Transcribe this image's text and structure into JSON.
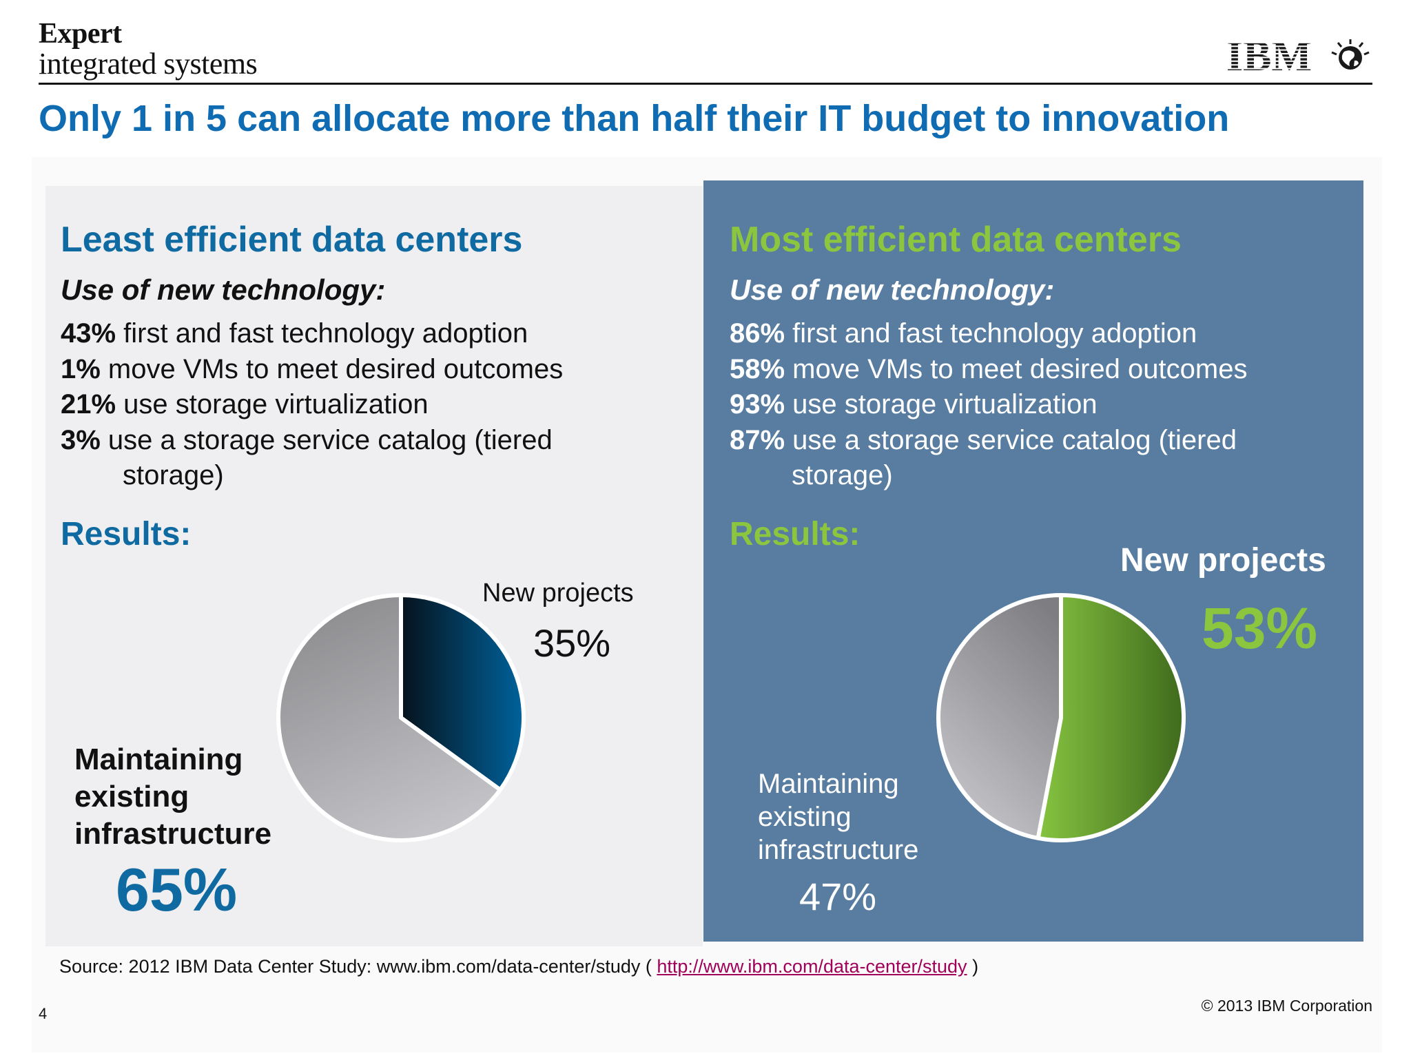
{
  "brand": {
    "line1": "Expert",
    "line2": "integrated systems"
  },
  "logo": {
    "text": "IBM",
    "icon": "globe-icon"
  },
  "slide_title": "Only 1 in 5 can allocate more than half their IT budget to innovation",
  "left": {
    "title": "Least efficient data centers",
    "subtitle": "Use of new technology:",
    "stats": [
      {
        "value": "43%",
        "text": " first and fast technology adoption"
      },
      {
        "value": "1%",
        "text": " move VMs to meet desired outcomes"
      },
      {
        "value": "21%",
        "text": " use storage virtualization"
      },
      {
        "value": "3%",
        "text": " use a storage service catalog (tiered",
        "cont": "storage)"
      }
    ],
    "results": "Results:",
    "new_label": "New projects",
    "new_pct": "35%",
    "maint_label": [
      "Maintaining",
      "existing",
      "infrastructure"
    ],
    "maint_pct": "65%"
  },
  "right": {
    "title": "Most efficient data centers",
    "subtitle": "Use of new technology:",
    "stats": [
      {
        "value": "86%",
        "text": " first and fast technology adoption"
      },
      {
        "value": "58%",
        "text": " move VMs to meet desired outcomes"
      },
      {
        "value": "93%",
        "text": " use storage virtualization"
      },
      {
        "value": "87%",
        "text": " use a storage service catalog (tiered",
        "cont": "storage)"
      }
    ],
    "results": "Results:",
    "new_label": "New projects",
    "new_pct": "53%",
    "maint_label": [
      "Maintaining",
      "existing",
      "infrastructure"
    ],
    "maint_pct": "47%"
  },
  "source": {
    "text": "Source: 2012 IBM Data Center Study: www.ibm.com/data-center/study ( ",
    "link": "http://www.ibm.com/data-center/study",
    "end": " )"
  },
  "page_number": "4",
  "copyright": "© 2013 IBM Corporation",
  "colors": {
    "title_blue": "#0f6cb3",
    "accent_green": "#8cc63f",
    "right_panel": "#587da1",
    "left_panel": "#efeff1",
    "pie_blue": "#00609a",
    "pie_green": "#7dbb42",
    "pie_gray": "#a9a9ad"
  },
  "chart_data": [
    {
      "type": "pie",
      "labels": [
        "New projects",
        "Maintaining existing infrastructure"
      ],
      "values": [
        35,
        65
      ],
      "colors": [
        "#00609a",
        "#a9a9ad"
      ]
    },
    {
      "type": "pie",
      "labels": [
        "New projects",
        "Maintaining existing infrastructure"
      ],
      "values": [
        53,
        47
      ],
      "colors": [
        "#7dbb42",
        "#a9a9ad"
      ]
    }
  ]
}
